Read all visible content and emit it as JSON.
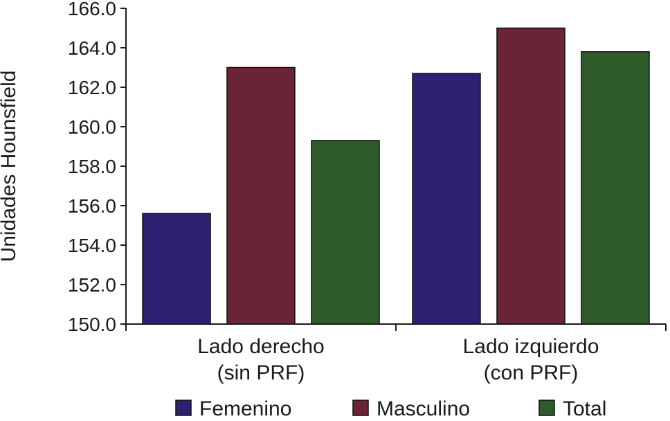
{
  "chart_data": {
    "type": "bar",
    "title": "",
    "xlabel": "",
    "ylabel": "Unidades Hounsfield",
    "ylim": [
      150,
      166
    ],
    "ytick_step": 2,
    "ytick_labels": [
      "150.0",
      "152.0",
      "154.0",
      "156.0",
      "158.0",
      "160.0",
      "162.0",
      "164.0",
      "166.0"
    ],
    "categories": [
      [
        "Lado derecho",
        "(sin PRF)"
      ],
      [
        "Lado izquierdo",
        "(con PRF)"
      ]
    ],
    "series": [
      {
        "name": "Femenino",
        "color": "#2b2170",
        "values": [
          155.6,
          162.7
        ]
      },
      {
        "name": "Masculino",
        "color": "#6b2436",
        "values": [
          163.0,
          165.0
        ]
      },
      {
        "name": "Total",
        "color": "#2f5a2a",
        "values": [
          159.3,
          163.8
        ]
      }
    ],
    "grid": false,
    "legend": "bottom"
  }
}
